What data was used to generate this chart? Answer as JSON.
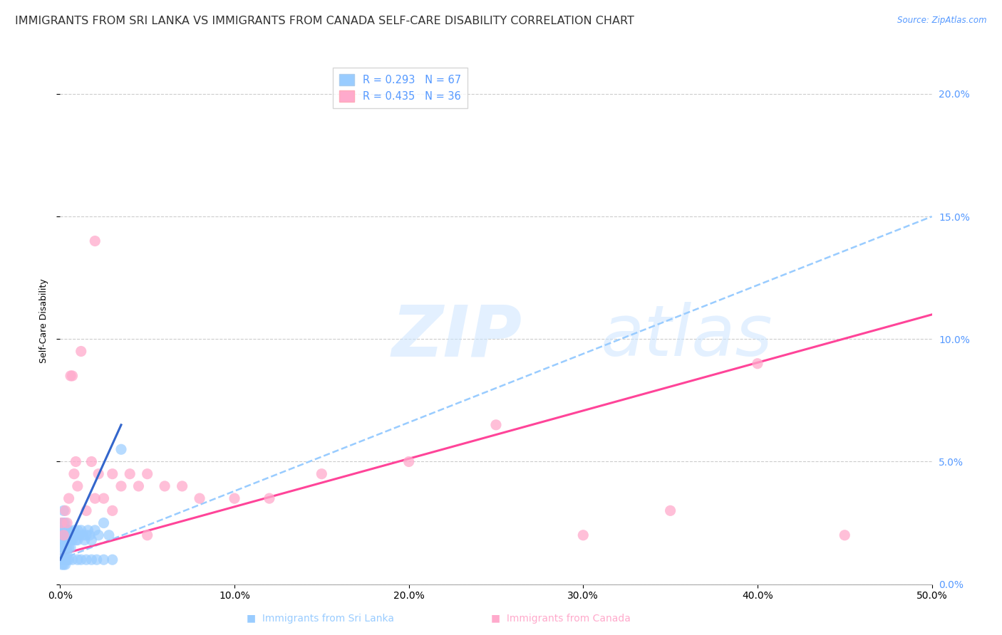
{
  "title": "IMMIGRANTS FROM SRI LANKA VS IMMIGRANTS FROM CANADA SELF-CARE DISABILITY CORRELATION CHART",
  "source": "Source: ZipAtlas.com",
  "xlim": [
    0,
    0.5
  ],
  "ylim": [
    0.0,
    0.215
  ],
  "ylabel": "Self-Care Disability",
  "right_axis_color": "#5599ff",
  "sri_lanka_color": "#99ccff",
  "canada_color": "#ffaacc",
  "sri_lanka_line_color": "#3366cc",
  "canada_line_color": "#ff4499",
  "dashed_line_color": "#99ccff",
  "background_color": "#FFFFFF",
  "watermark_color": "#ddeeff",
  "title_fontsize": 11.5,
  "tick_fontsize": 10,
  "ylabel_fontsize": 9,
  "sri_lanka_x": [
    0.001,
    0.001,
    0.001,
    0.001,
    0.001,
    0.002,
    0.002,
    0.002,
    0.002,
    0.002,
    0.002,
    0.002,
    0.003,
    0.003,
    0.003,
    0.003,
    0.003,
    0.003,
    0.004,
    0.004,
    0.004,
    0.004,
    0.004,
    0.005,
    0.005,
    0.005,
    0.005,
    0.006,
    0.006,
    0.006,
    0.007,
    0.007,
    0.008,
    0.008,
    0.009,
    0.009,
    0.01,
    0.01,
    0.011,
    0.012,
    0.013,
    0.014,
    0.015,
    0.016,
    0.017,
    0.018,
    0.02,
    0.022,
    0.025,
    0.028,
    0.001,
    0.001,
    0.002,
    0.002,
    0.003,
    0.003,
    0.004,
    0.005,
    0.007,
    0.01,
    0.012,
    0.015,
    0.018,
    0.021,
    0.025,
    0.03,
    0.035
  ],
  "sri_lanka_y": [
    0.02,
    0.022,
    0.018,
    0.025,
    0.015,
    0.03,
    0.025,
    0.02,
    0.018,
    0.022,
    0.015,
    0.012,
    0.025,
    0.022,
    0.018,
    0.015,
    0.02,
    0.012,
    0.022,
    0.018,
    0.015,
    0.02,
    0.012,
    0.02,
    0.018,
    0.015,
    0.022,
    0.02,
    0.018,
    0.015,
    0.02,
    0.018,
    0.022,
    0.02,
    0.02,
    0.018,
    0.022,
    0.018,
    0.02,
    0.022,
    0.02,
    0.018,
    0.02,
    0.022,
    0.02,
    0.018,
    0.022,
    0.02,
    0.025,
    0.02,
    0.01,
    0.008,
    0.01,
    0.008,
    0.01,
    0.008,
    0.01,
    0.01,
    0.01,
    0.01,
    0.01,
    0.01,
    0.01,
    0.01,
    0.01,
    0.01,
    0.055
  ],
  "canada_x": [
    0.001,
    0.002,
    0.003,
    0.004,
    0.005,
    0.006,
    0.007,
    0.008,
    0.009,
    0.01,
    0.012,
    0.015,
    0.018,
    0.02,
    0.022,
    0.025,
    0.03,
    0.035,
    0.04,
    0.045,
    0.05,
    0.06,
    0.07,
    0.08,
    0.1,
    0.12,
    0.15,
    0.2,
    0.25,
    0.3,
    0.35,
    0.4,
    0.45,
    0.05,
    0.02,
    0.03
  ],
  "canada_y": [
    0.025,
    0.02,
    0.03,
    0.025,
    0.035,
    0.085,
    0.085,
    0.045,
    0.05,
    0.04,
    0.095,
    0.03,
    0.05,
    0.035,
    0.045,
    0.035,
    0.045,
    0.04,
    0.045,
    0.04,
    0.045,
    0.04,
    0.04,
    0.035,
    0.035,
    0.035,
    0.045,
    0.05,
    0.065,
    0.02,
    0.03,
    0.09,
    0.02,
    0.02,
    0.14,
    0.03
  ],
  "sri_lanka_trend_x": [
    0.0,
    0.5
  ],
  "sri_lanka_trend_y": [
    0.01,
    0.15
  ],
  "canada_trend_x": [
    0.0,
    0.5
  ],
  "canada_trend_y": [
    0.012,
    0.11
  ]
}
